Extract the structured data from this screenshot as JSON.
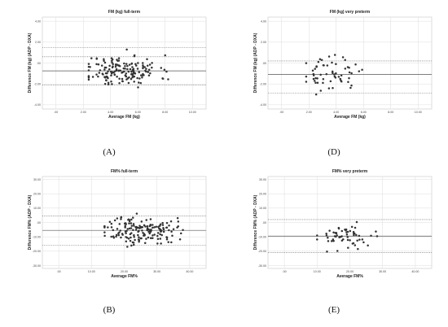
{
  "figure": {
    "panel_labels": [
      "(A)",
      "(D)",
      "(B)",
      "(E)"
    ]
  },
  "chart_data": [
    {
      "id": "A",
      "type": "scatter",
      "title": "FM (kg) full-term",
      "xlabel": "Average FM (kg)",
      "ylabel": "Difference FM (kg) (ADP - DXA)",
      "xlim": [
        -1,
        11
      ],
      "ylim": [
        -4.4,
        4.4
      ],
      "xticks": [
        0,
        2,
        4,
        6,
        8,
        10
      ],
      "xtick_labels": [
        ".00",
        "2.00",
        "4.00",
        "6.00",
        "8.00",
        "10.00"
      ],
      "yticks": [
        -4,
        -2,
        0,
        2,
        4
      ],
      "ytick_labels": [
        "-4.00",
        "-2.00",
        ".00",
        "2.00",
        "4.00"
      ],
      "grid": true,
      "mean_line": -0.75,
      "loa_lines": [
        -2.1,
        0.6,
        1.5
      ],
      "n_points": 170,
      "x_range": [
        2.4,
        9.1
      ],
      "x_center": 4.9,
      "spread_sd": 0.75,
      "seed": 11
    },
    {
      "id": "D",
      "type": "scatter",
      "title": "FM (kg) very preterm",
      "xlabel": "Average FM (kg)",
      "ylabel": "Difference FM (kg) (ADP - DXA)",
      "xlim": [
        -1,
        11
      ],
      "ylim": [
        -4.4,
        4.4
      ],
      "xticks": [
        0,
        2,
        4,
        6,
        8,
        10
      ],
      "xtick_labels": [
        ".00",
        "2.00",
        "4.00",
        "6.00",
        "8.00",
        "10.00"
      ],
      "yticks": [
        -4,
        -2,
        0,
        2,
        4
      ],
      "ytick_labels": [
        "-4.00",
        "-2.00",
        ".00",
        "2.00",
        "4.00"
      ],
      "grid": true,
      "mean_line": -1.1,
      "loa_lines": [
        -2.9,
        0.2
      ],
      "n_points": 60,
      "x_range": [
        1.8,
        6.8
      ],
      "x_center": 3.6,
      "spread_sd": 0.75,
      "seed": 23
    },
    {
      "id": "B",
      "type": "scatter",
      "title": "FM% full-term",
      "xlabel": "Average FM%",
      "ylabel": "Difference FM% (ADP - DXA)",
      "xlim": [
        -5,
        45
      ],
      "ylim": [
        -32,
        32
      ],
      "xticks": [
        0,
        10,
        20,
        30,
        40
      ],
      "xtick_labels": [
        ".00",
        "10.00",
        "20.00",
        "30.00",
        "40.00"
      ],
      "yticks": [
        -30,
        -20,
        -10,
        0,
        10,
        20,
        30
      ],
      "ytick_labels": [
        "-30.00",
        "-20.00",
        "-10.00",
        ".00",
        "10.00",
        "20.00",
        "30.00"
      ],
      "grid": true,
      "mean_line": -5.5,
      "loa_lines": [
        -16.0,
        4.5
      ],
      "n_points": 170,
      "x_range": [
        14,
        41
      ],
      "x_center": 25,
      "spread_sd": 4.8,
      "seed": 37
    },
    {
      "id": "E",
      "type": "scatter",
      "title": "FM% very preterm",
      "xlabel": "Average FM%",
      "ylabel": "Difference FM% (ADP - DXA)",
      "xlim": [
        -5,
        45
      ],
      "ylim": [
        -32,
        32
      ],
      "xticks": [
        0,
        10,
        20,
        30,
        40
      ],
      "xtick_labels": [
        ".00",
        "10.00",
        "20.00",
        "30.00",
        "40.00"
      ],
      "yticks": [
        -30,
        -20,
        -10,
        0,
        10,
        20,
        30
      ],
      "ytick_labels": [
        "-30.00",
        "-20.00",
        "-10.00",
        ".00",
        "10.00",
        "20.00",
        "30.00"
      ],
      "grid": true,
      "mean_line": -9.5,
      "loa_lines": [
        -21.0,
        2.0
      ],
      "n_points": 60,
      "x_range": [
        10,
        33
      ],
      "x_center": 19,
      "spread_sd": 4.5,
      "seed": 53
    }
  ]
}
